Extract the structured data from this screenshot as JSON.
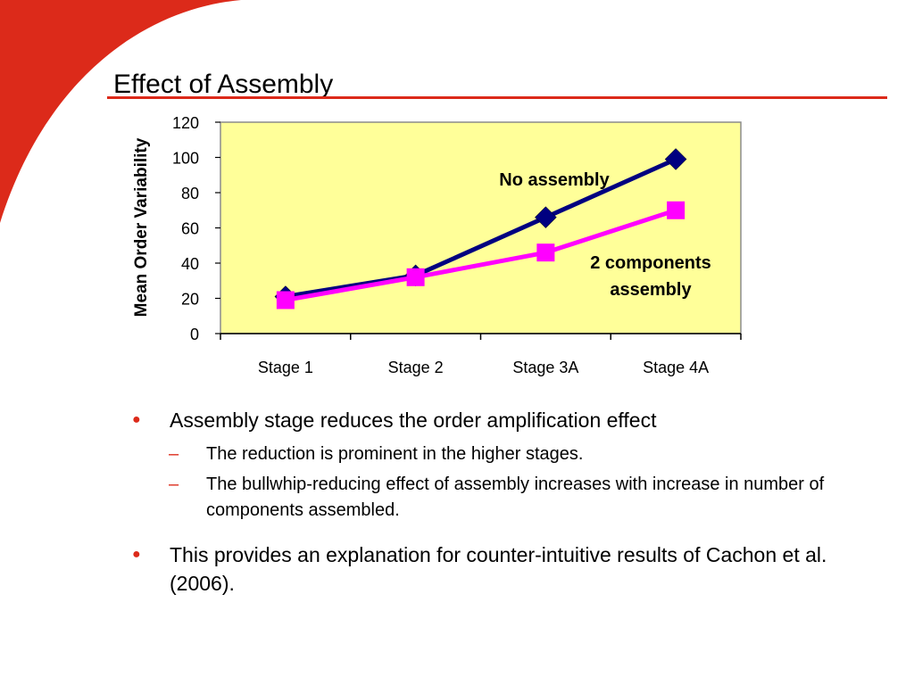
{
  "slide": {
    "title": "Effect of Assembly",
    "accent_color": "#dc2a1a"
  },
  "chart_data": {
    "type": "line",
    "title": "",
    "ylabel": "Mean Order Variability",
    "xlabel": "",
    "categories": [
      "Stage 1",
      "Stage 2",
      "Stage 3A",
      "Stage 4A"
    ],
    "ylim": [
      0,
      120
    ],
    "yticks": [
      0,
      20,
      40,
      60,
      80,
      100,
      120
    ],
    "plot_background": "#ffff99",
    "grid": false,
    "legend": "none",
    "series": [
      {
        "name": "No assembly",
        "values": [
          21,
          33,
          66,
          99
        ],
        "color": "#000080",
        "marker": "diamond"
      },
      {
        "name": "2 components assembly",
        "values": [
          19,
          32,
          46,
          70
        ],
        "color": "#ff00ff",
        "marker": "square"
      }
    ],
    "annotations": [
      {
        "text": "No assembly",
        "color": "#000000"
      },
      {
        "text_lines": [
          "2 components",
          "assembly"
        ],
        "color": "#000000"
      }
    ]
  },
  "bullets": [
    {
      "text": "Assembly stage reduces the order amplification effect",
      "sub": [
        {
          "text": "The reduction is prominent in the higher stages."
        },
        {
          "text": "The bullwhip-reducing effect of assembly increases with increase in number of components assembled."
        }
      ]
    },
    {
      "text": "This provides an explanation for counter-intuitive results of Cachon et al. (2006).",
      "sub": []
    }
  ],
  "bullet_symbol": "●",
  "sub_bullet_symbol": "–"
}
